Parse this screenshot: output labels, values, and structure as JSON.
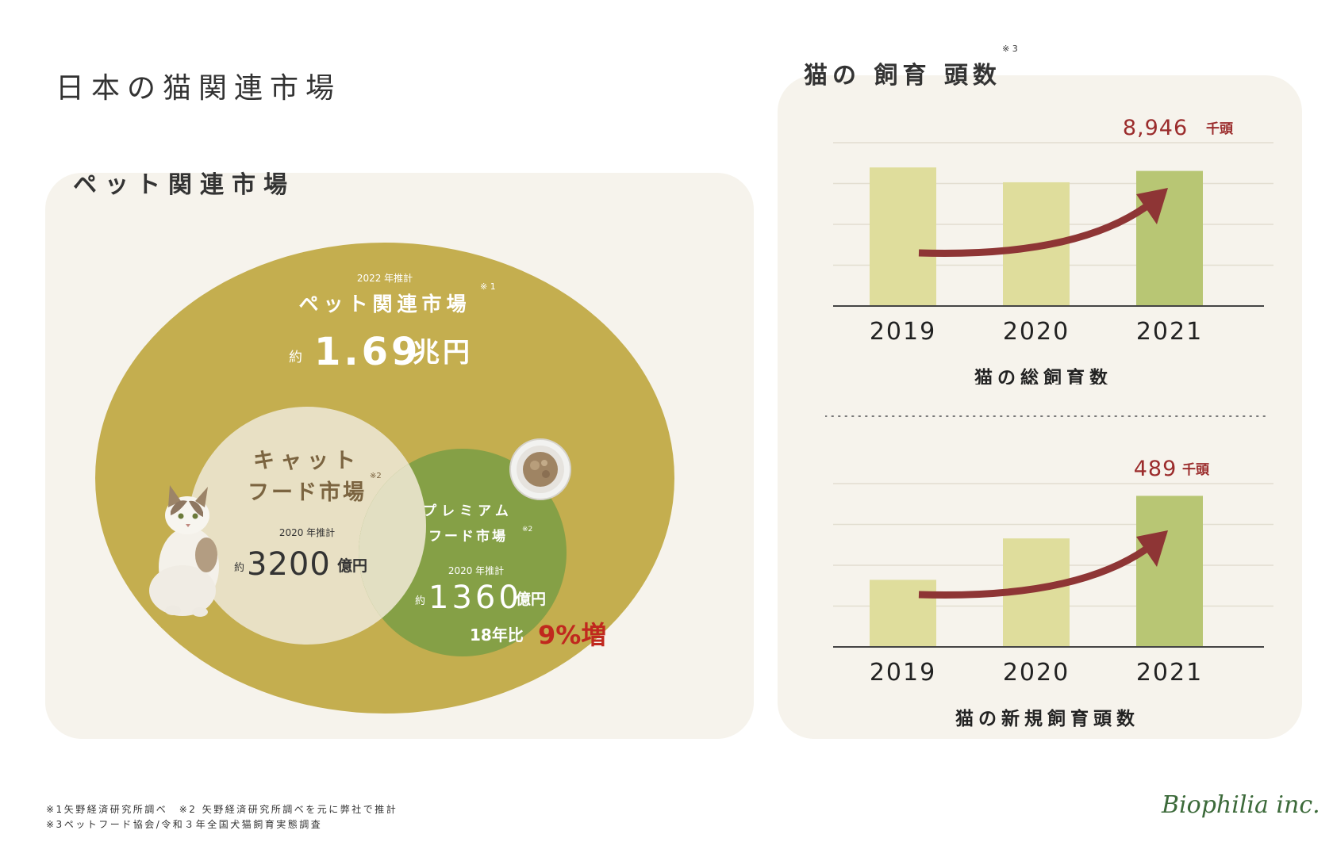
{
  "page": {
    "title": "日本の猫関連市場"
  },
  "market": {
    "panel_title": "ペット関連市場",
    "pet": {
      "year_note": "2022 年推計",
      "label": "ペット関連市場",
      "note_mark": "※ 1",
      "approx": "約",
      "value": "1.69",
      "unit": "兆円"
    },
    "cat_food": {
      "label_line1": "キャット",
      "label_line2": "フード市場",
      "note_mark": "※2",
      "year_note": "2020 年推計",
      "approx": "約",
      "value": "3200",
      "unit": "億円"
    },
    "premium_food": {
      "label_line1": "プレミアム",
      "label_line2": "フード市場",
      "note_mark": "※2",
      "year_note": "2020 年推計",
      "approx": "約",
      "value": "1360",
      "unit": "億円",
      "growth_prefix": "18年比",
      "growth_value": "9%増"
    },
    "colors": {
      "pet": "#c4ae4f",
      "cat_food": "#e8e0c4",
      "premium": "#85a046",
      "accent": "#c0281e"
    }
  },
  "cats_panel": {
    "title": "猫の 飼育 頭数",
    "note_mark": "※ 3"
  },
  "chart_data": [
    {
      "type": "bar",
      "title": "猫の総飼育数",
      "categories": [
        "2019",
        "2020",
        "2021"
      ],
      "values": [
        8960,
        8900,
        8946
      ],
      "highlight_label_value": "8,946",
      "highlight_label_unit": "千頭",
      "ylim": [
        8400,
        9060
      ],
      "grid": true,
      "colors": {
        "bar": "#dfdd9c",
        "highlight": "#b8c674",
        "arrow": "#8e3535",
        "label": "#9b2c2c"
      }
    },
    {
      "type": "bar",
      "title": "猫の新規飼育頭数",
      "categories": [
        "2019",
        "2020",
        "2021"
      ],
      "values": [
        345,
        416,
        489
      ],
      "highlight_label_value": "489",
      "highlight_label_unit": "千頭",
      "ylim": [
        230,
        510
      ],
      "grid": true,
      "colors": {
        "bar": "#dfdd9c",
        "highlight": "#b8c674",
        "arrow": "#8e3535",
        "label": "#9b2c2c"
      }
    }
  ],
  "footnotes": {
    "line1": "※1矢野経済研究所調べ　※2 矢野経済研究所調べを元に弊社で推計",
    "line2": "※3ペットフード協会/令和３年全国犬猫飼育実態調査"
  },
  "logo": {
    "text": "Biophilia inc."
  }
}
